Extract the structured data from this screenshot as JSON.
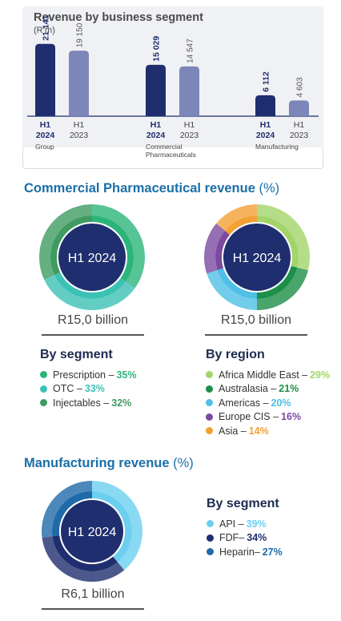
{
  "colors": {
    "navy": "#1f2e6e",
    "lavender": "#7c86b8",
    "title_blue": "#1a6fa8",
    "green_prescription": "#2cb57b",
    "teal_otc": "#3cc1b5",
    "green_injectables": "#3f9b60",
    "africa": "#a3d46a",
    "australasia": "#1d8f49",
    "americas": "#4fbfe6",
    "europe": "#7b4aa0",
    "asia": "#f4a033",
    "api": "#6dcff0",
    "fdf": "#1f2e6e",
    "heparin": "#1f6aa8"
  },
  "segment_panel": {
    "title": "Revenue by business segment",
    "unit": "(R’m)"
  },
  "commercial": {
    "title": "Commercial Pharmaceutical revenue",
    "title_unit": "(%)",
    "center_label_1": "H1 2024",
    "center_label_2": "H1 2024",
    "caption_1": "R15,0 billion",
    "caption_2": "R15,0 billion",
    "by_segment_heading": "By segment",
    "by_region_heading": "By region",
    "segment_legend": [
      {
        "label": "Prescription –",
        "pct": "35%"
      },
      {
        "label": "OTC –",
        "pct": "33%"
      },
      {
        "label": "Injectables –",
        "pct": "32%"
      }
    ],
    "region_legend": [
      {
        "label": "Africa Middle East –",
        "pct": "29%"
      },
      {
        "label": "Australasia –",
        "pct": "21%"
      },
      {
        "label": "Americas –",
        "pct": "20%"
      },
      {
        "label": "Europe CIS –",
        "pct": "16%"
      },
      {
        "label": "Asia –",
        "pct": "14%"
      }
    ]
  },
  "manufacturing": {
    "title": "Manufacturing revenue",
    "title_unit": "(%)",
    "center_label": "H1 2024",
    "caption": "R6,1 billion",
    "by_segment_heading": "By segment",
    "legend": [
      {
        "label": "API –",
        "pct": "39%"
      },
      {
        "label": "FDF–",
        "pct": "34%"
      },
      {
        "label": "Heparin–",
        "pct": "27%"
      }
    ]
  },
  "chart_data": [
    {
      "type": "bar",
      "title": "Revenue by business segment",
      "ylabel": "(R’m)",
      "groups": [
        "Group",
        "Commercial Pharmaceuticals",
        "Manufacturing"
      ],
      "series": [
        {
          "name": "H1 2024",
          "values": [
            21141,
            15029,
            6112
          ],
          "labels": [
            "21 141",
            "15 029",
            "6 112"
          ]
        },
        {
          "name": "H1 2023",
          "values": [
            19150,
            14547,
            4603
          ],
          "labels": [
            "19 150",
            "14 547",
            "4 603"
          ]
        }
      ],
      "tick_year_2024": "2024",
      "tick_year_2023": "2023",
      "tick_period": "H1",
      "group_labels": [
        [
          "Group"
        ],
        [
          "Commercial",
          "Pharmaceuticals"
        ],
        [
          "Manufacturing"
        ]
      ]
    },
    {
      "type": "pie",
      "title": "By segment",
      "slices": [
        {
          "name": "Prescription",
          "value": 35
        },
        {
          "name": "OTC",
          "value": 33
        },
        {
          "name": "Injectables",
          "value": 32
        }
      ]
    },
    {
      "type": "pie",
      "title": "By region",
      "slices": [
        {
          "name": "Africa Middle East",
          "value": 29
        },
        {
          "name": "Australasia",
          "value": 21
        },
        {
          "name": "Americas",
          "value": 20
        },
        {
          "name": "Europe CIS",
          "value": 16
        },
        {
          "name": "Asia",
          "value": 14
        }
      ]
    },
    {
      "type": "pie",
      "title": "By segment",
      "slices": [
        {
          "name": "API",
          "value": 39
        },
        {
          "name": "FDF",
          "value": 34
        },
        {
          "name": "Heparin",
          "value": 27
        }
      ]
    }
  ]
}
